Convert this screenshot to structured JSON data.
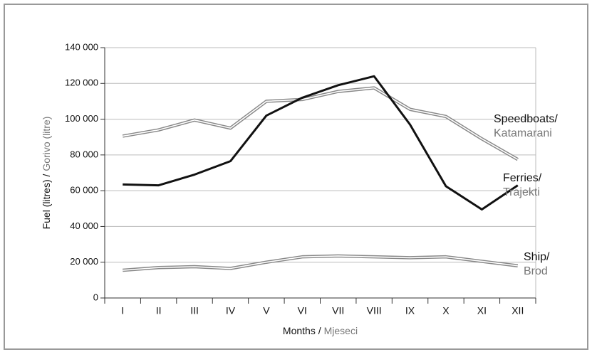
{
  "chart_data": {
    "type": "line",
    "xlabel": "Months /",
    "xlabel_hr": "Mjeseci",
    "ylabel": "Fuel (litres) /",
    "ylabel_hr": "Gorivo (litre)",
    "categories": [
      "I",
      "II",
      "III",
      "IV",
      "V",
      "VI",
      "VII",
      "VIII",
      "IX",
      "X",
      "XI",
      "XII"
    ],
    "series": [
      {
        "name": "Speedboats/",
        "name_hr": "Katamarani",
        "color": "#888888",
        "double": true,
        "values": [
          90500,
          94000,
          99500,
          95000,
          110000,
          111000,
          115500,
          117500,
          105500,
          101500,
          89000,
          77500
        ]
      },
      {
        "name": "Ferries/",
        "name_hr": "Trajekti",
        "color": "#111111",
        "double": false,
        "values": [
          63500,
          63000,
          69000,
          76500,
          102000,
          112000,
          119000,
          124000,
          97000,
          62500,
          49500,
          63000
        ]
      },
      {
        "name": "Ship/",
        "name_hr": "Brod",
        "color": "#888888",
        "double": true,
        "values": [
          15500,
          17000,
          17500,
          16500,
          20000,
          23000,
          23500,
          23000,
          22500,
          23000,
          20500,
          18000
        ]
      }
    ],
    "ylim": [
      0,
      140000
    ],
    "yticks": [
      0,
      {
        "value": 20000,
        "label": "20 000"
      },
      {
        "value": 40000,
        "label": "40 000"
      },
      {
        "value": 60000,
        "label": "60 000"
      },
      {
        "value": 80000,
        "label": "80 000"
      },
      {
        "value": 100000,
        "label": "100 000"
      },
      {
        "value": 120000,
        "label": "120 000"
      },
      {
        "value": 140000,
        "label": "140 000"
      }
    ],
    "grid": true
  }
}
